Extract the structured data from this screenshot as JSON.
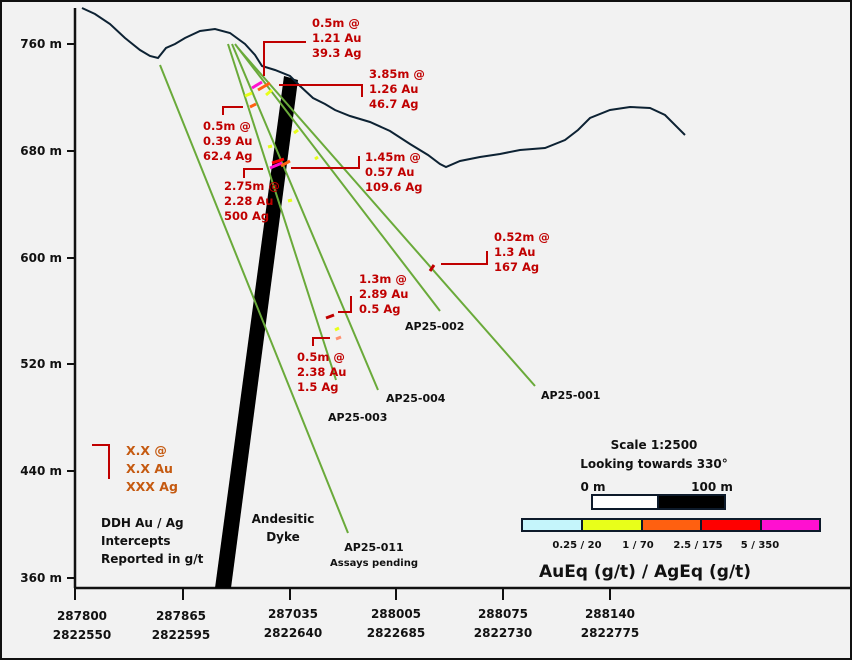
{
  "y_axis": {
    "ticks": [
      "760 m",
      "680 m",
      "600 m",
      "520 m",
      "440 m",
      "360 m"
    ]
  },
  "x_axis": {
    "ticks": [
      {
        "easting": "287800",
        "northing": "2822550"
      },
      {
        "easting": "287865",
        "northing": "2822595"
      },
      {
        "easting": "287035",
        "northing": "2822640"
      },
      {
        "easting": "288005",
        "northing": "2822685"
      },
      {
        "easting": "288075",
        "northing": "2822730"
      },
      {
        "easting": "288140",
        "northing": "2822775"
      }
    ]
  },
  "intercepts": [
    {
      "length": "0.5m @",
      "au": "1.21 Au",
      "ag": "39.3 Ag"
    },
    {
      "length": "3.85m @",
      "au": "1.26 Au",
      "ag": "46.7 Ag"
    },
    {
      "length": "0.5m @",
      "au": "0.39 Au",
      "ag": "62.4 Ag"
    },
    {
      "length": "1.45m @",
      "au": "0.57 Au",
      "ag": "109.6 Ag"
    },
    {
      "length": "2.75m @",
      "au": "2.28 Au",
      "ag": "500 Ag"
    },
    {
      "length": "0.52m @",
      "au": "1.3 Au",
      "ag": "167 Ag"
    },
    {
      "length": "1.3m @",
      "au": "2.89 Au",
      "ag": "0.5 Ag"
    },
    {
      "length": "0.5m @",
      "au": "2.38 Au",
      "ag": "1.5 Ag"
    }
  ],
  "drillholes": [
    {
      "name": "AP25-002"
    },
    {
      "name": "AP25-001"
    },
    {
      "name": "AP25-004"
    },
    {
      "name": "AP25-003"
    },
    {
      "name": "AP25-011",
      "note": "Assays pending"
    }
  ],
  "legend": {
    "example": {
      "length": "X.X @",
      "au": "X.X Au",
      "ag": "XXX Ag"
    },
    "description": [
      "DDH Au / Ag",
      "Intercepts",
      "Reported in g/t"
    ],
    "dyke_label": [
      "Andesitic",
      "Dyke"
    ],
    "scale": "Scale 1:2500",
    "direction": "Looking towards 330°",
    "scale_bar": {
      "start": "0 m",
      "end": "100 m"
    },
    "color_scale": {
      "colors": [
        "#c5f5fb",
        "#e8ff1a",
        "#ff6010",
        "#ff0000",
        "#ff10d0"
      ],
      "breaks": [
        "0.25 / 20",
        "1 / 70",
        "2.5 / 175",
        "5 / 350"
      ],
      "title": "AuEq (g/t) / AgEq (g/t)"
    }
  },
  "colors": {
    "drillhole": "#6aaa3a",
    "intercept": "#c00000",
    "topography": "#0d2233",
    "dyke": "#000000",
    "background": "#f2f2f2"
  }
}
